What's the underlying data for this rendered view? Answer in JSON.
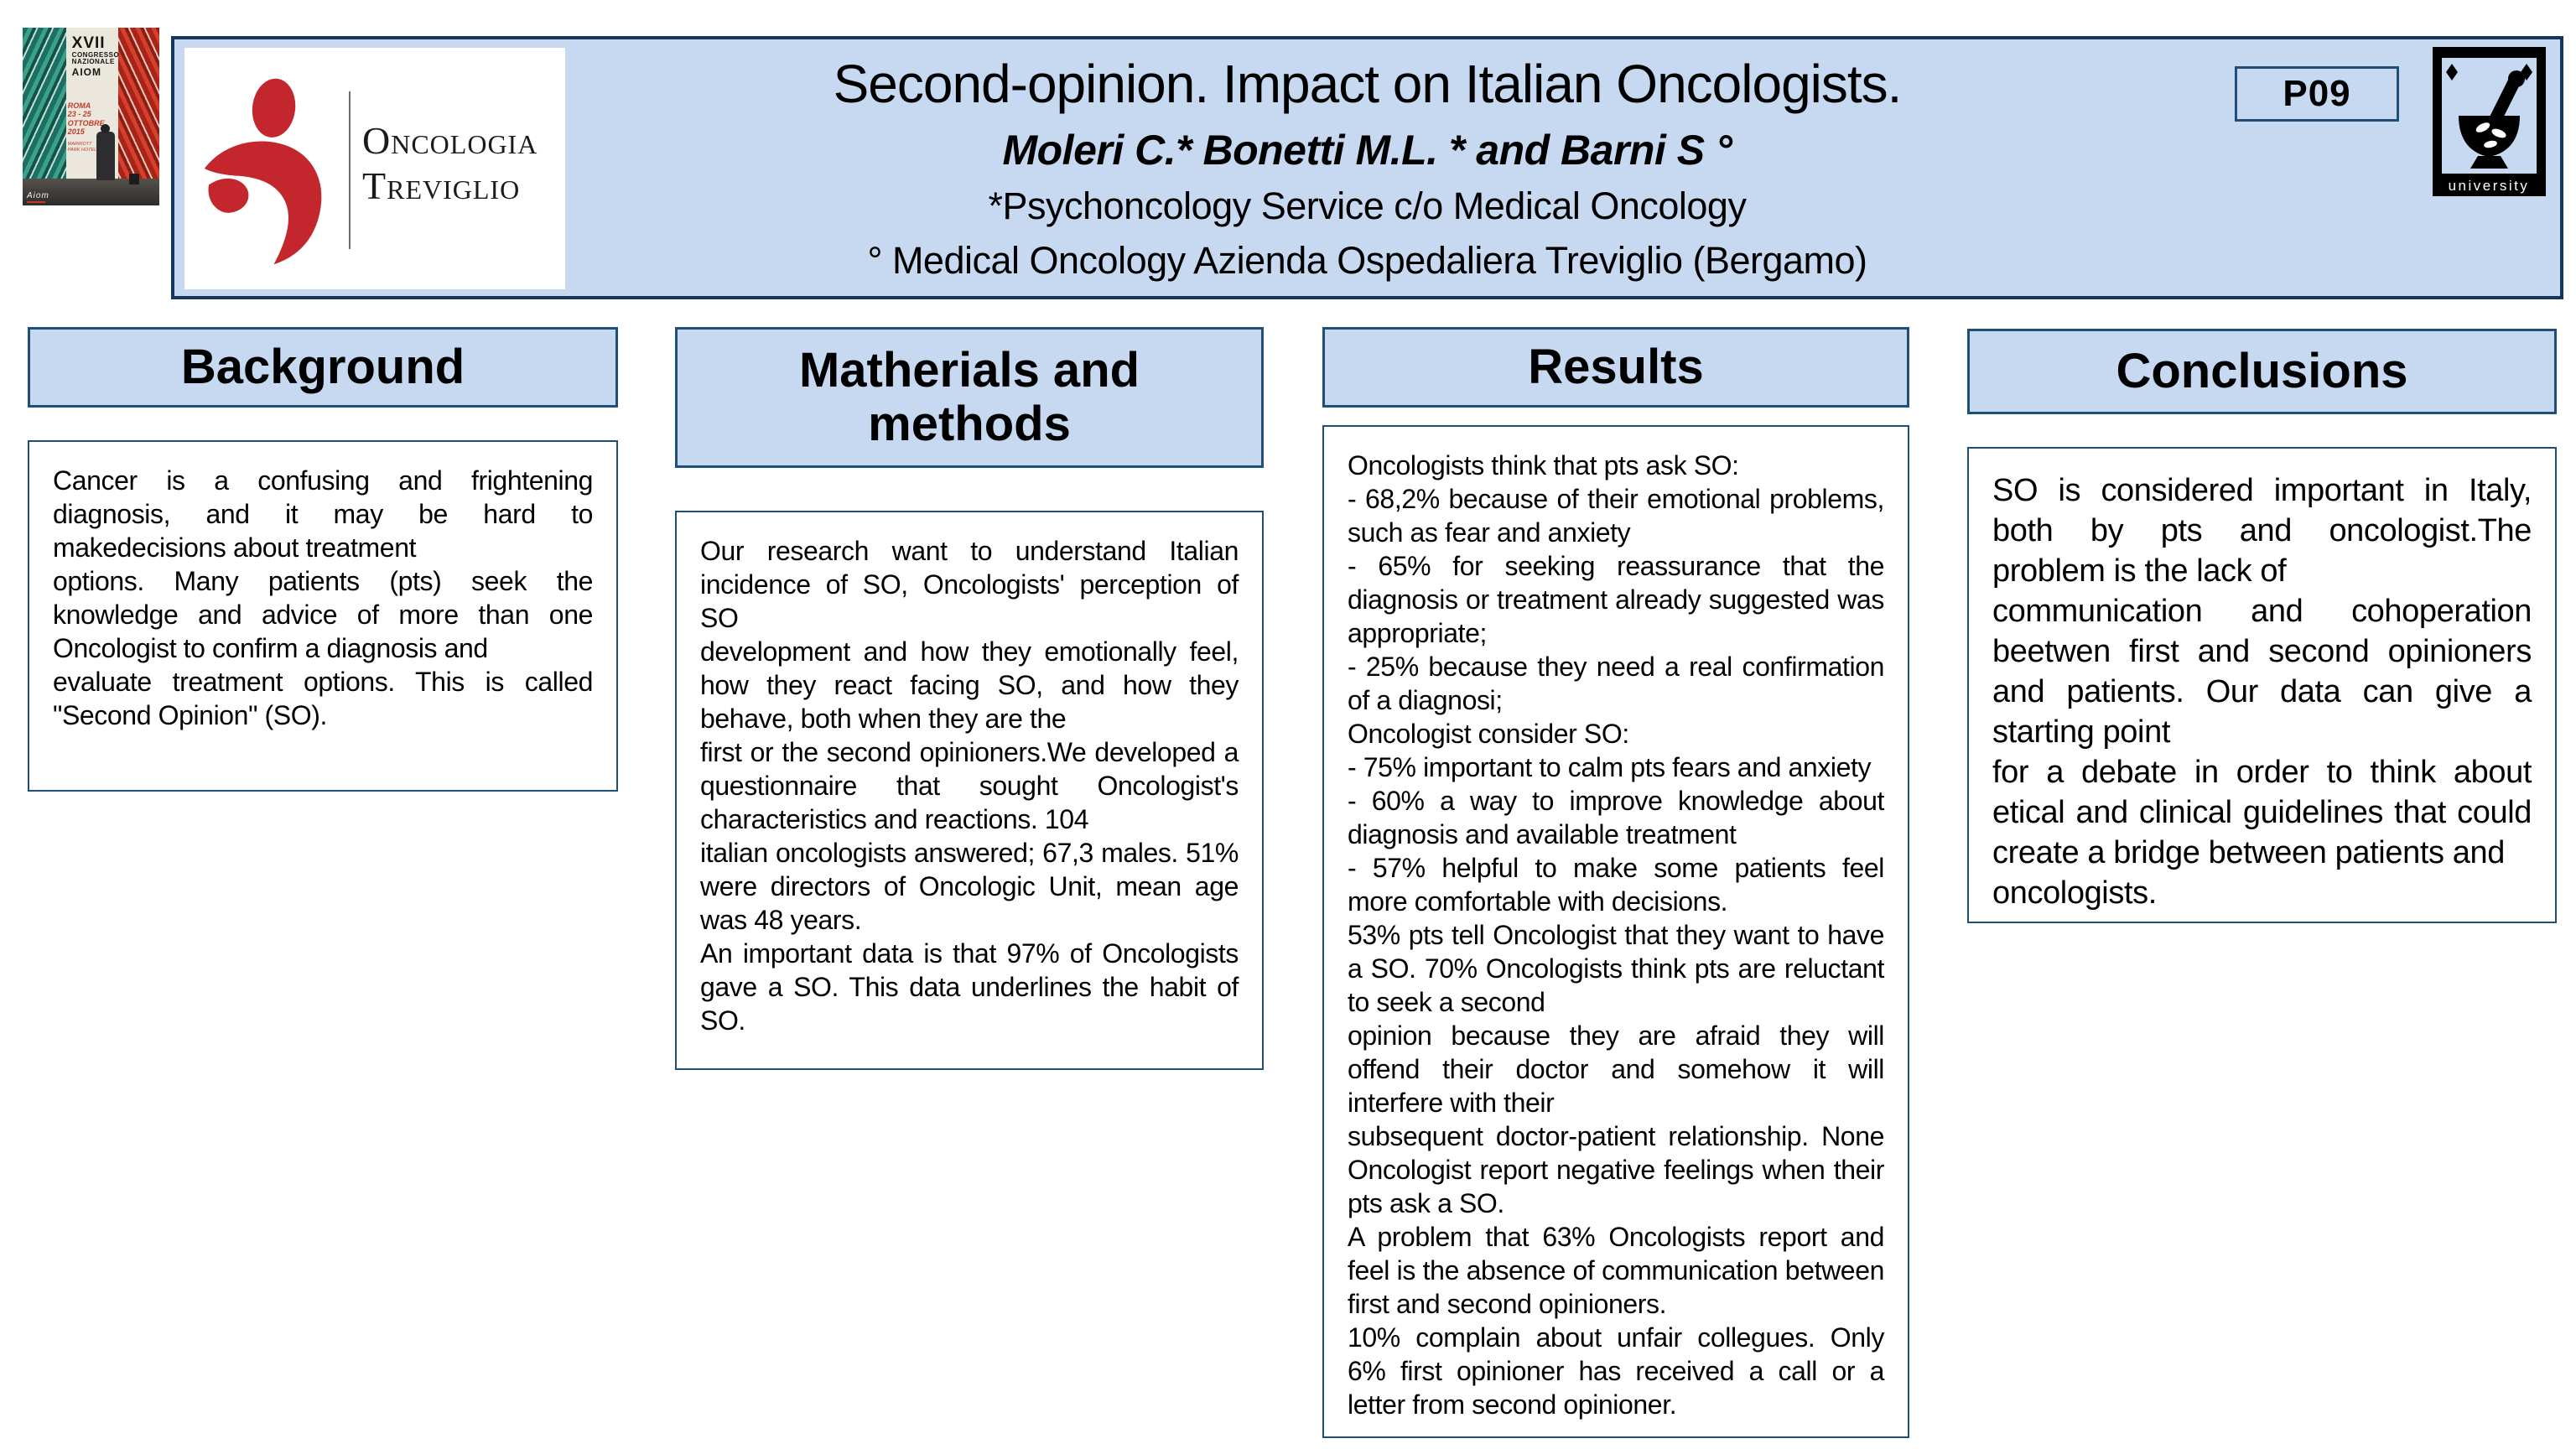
{
  "colors": {
    "panel_fill": "#c6d9f1",
    "border_dark": "#17365d",
    "border": "#1f4e79",
    "logo_red": "#c4262e"
  },
  "congress_poster": {
    "title_line1": "XVII",
    "title_line2": "CONGRESSO",
    "title_line3": "NAZIONALE",
    "title_line4": "AIOM",
    "date_line1": "ROMA",
    "date_line2": "23 - 25",
    "date_line3": "OTTOBRE",
    "date_line4": "2015",
    "venue": "MARRIOTT PARK HOTEL",
    "footer": "Aiom"
  },
  "logo": {
    "line1": "Oncologia",
    "line2": "Treviglio"
  },
  "header": {
    "title": "Second-opinion. Impact on Italian Oncologists.",
    "authors": "Moleri C.* Bonetti M.L. * and  Barni S °",
    "affiliation1": "*Psychoncology Service c/o Medical Oncology",
    "affiliation2": "°  Medical Oncology Azienda Ospedaliera Treviglio (Bergamo)",
    "badge": "P09",
    "university_label": "university"
  },
  "sections": [
    {
      "title": "Background",
      "paragraphs": [
        "Cancer is a confusing and frightening diagnosis, and it may be hard to makedecisions about treatment",
        "options. Many patients (pts) seek the knowledge and advice of more than one Oncologist to confirm a diagnosis and",
        "evaluate treatment options. This is called \"Second Opinion\" (SO)."
      ]
    },
    {
      "title": "Matherials and methods",
      "paragraphs": [
        "Our research want to understand Italian incidence of SO, Oncologists' perception of SO",
        "development and how they emotionally feel, how they react facing SO, and how they behave, both when they are the",
        "first or the second opinioners.We developed a questionnaire that sought Oncologist's characteristics and reactions. 104",
        "italian oncologists answered; 67,3 males. 51% were directors of Oncologic Unit, mean age was 48 years.",
        "An important data is that 97% of Oncologists gave a SO. This data underlines the habit of SO."
      ]
    },
    {
      "title": "Results",
      "paragraphs": [
        "Oncologists think that pts ask SO:",
        "- 68,2% because of their emotional problems, such as fear and anxiety",
        "- 65% for seeking reassurance that the diagnosis or treatment already suggested was appropriate;",
        "- 25% because they need a real confirmation of a diagnosi;",
        "Oncologist consider SO:",
        "- 75% important to calm pts fears and anxiety",
        "- 60% a way to improve knowledge about diagnosis and available treatment",
        "- 57% helpful to make some patients feel more comfortable with decisions.",
        "53% pts tell Oncologist that they want to have a SO. 70% Oncologists think pts are reluctant to seek a second",
        "opinion because they are afraid they will offend their doctor and somehow it will interfere with their",
        "subsequent doctor-patient relationship. None Oncologist report negative feelings when their pts ask a SO.",
        "A problem that 63% Oncologists report and feel is the absence of communication between first and second opinioners.",
        "10% complain about unfair collegues. Only 6% first opinioner has received a call or a letter from second opinioner."
      ]
    },
    {
      "title": "Conclusions",
      "paragraphs": [
        "SO is considered important in Italy, both by pts and oncologist.The problem is the lack of",
        "communication and cohoperation beetwen first and second opinioners and patients. Our data can give a starting point",
        "for a debate in order to think about etical and clinical guidelines that could create a bridge between patients and",
        "oncologists."
      ]
    }
  ]
}
